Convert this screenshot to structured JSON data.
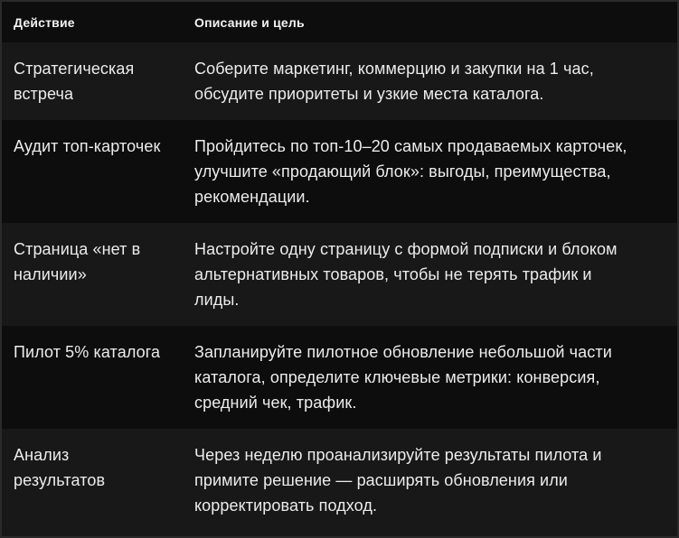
{
  "colors": {
    "row_dark": "#0d0d0d",
    "row_light": "#181818",
    "border": "#2a2a2a",
    "text": "#ececec"
  },
  "table": {
    "columns": [
      {
        "label": "Действие"
      },
      {
        "label": "Описание и цель"
      }
    ],
    "rows": [
      {
        "action": "Стратегическая\nвстреча",
        "description": "Соберите маркетинг, коммерцию и закупки на 1 час,\nобсудите приоритеты и узкие места каталога."
      },
      {
        "action": "Аудит топ-карточек",
        "description": "Пройдитесь по топ-10–20 самых продаваемых карточек,\nулучшите «продающий блок»: выгоды, преимущества,\nрекомендации."
      },
      {
        "action": "Страница «нет в\nналичии»",
        "description": "Настройте одну страницу с формой подписки и блоком\nальтернативных товаров, чтобы не терять трафик и\nлиды."
      },
      {
        "action": "Пилот 5% каталога",
        "description": "Запланируйте пилотное обновление небольшой части\nкаталога, определите ключевые метрики: конверсия,\nсредний чек, трафик."
      },
      {
        "action": "Анализ\nрезультатов",
        "description": "Через неделю проанализируйте результаты пилота и\nпримите решение — расширять обновления или\nкорректировать подход."
      }
    ]
  }
}
